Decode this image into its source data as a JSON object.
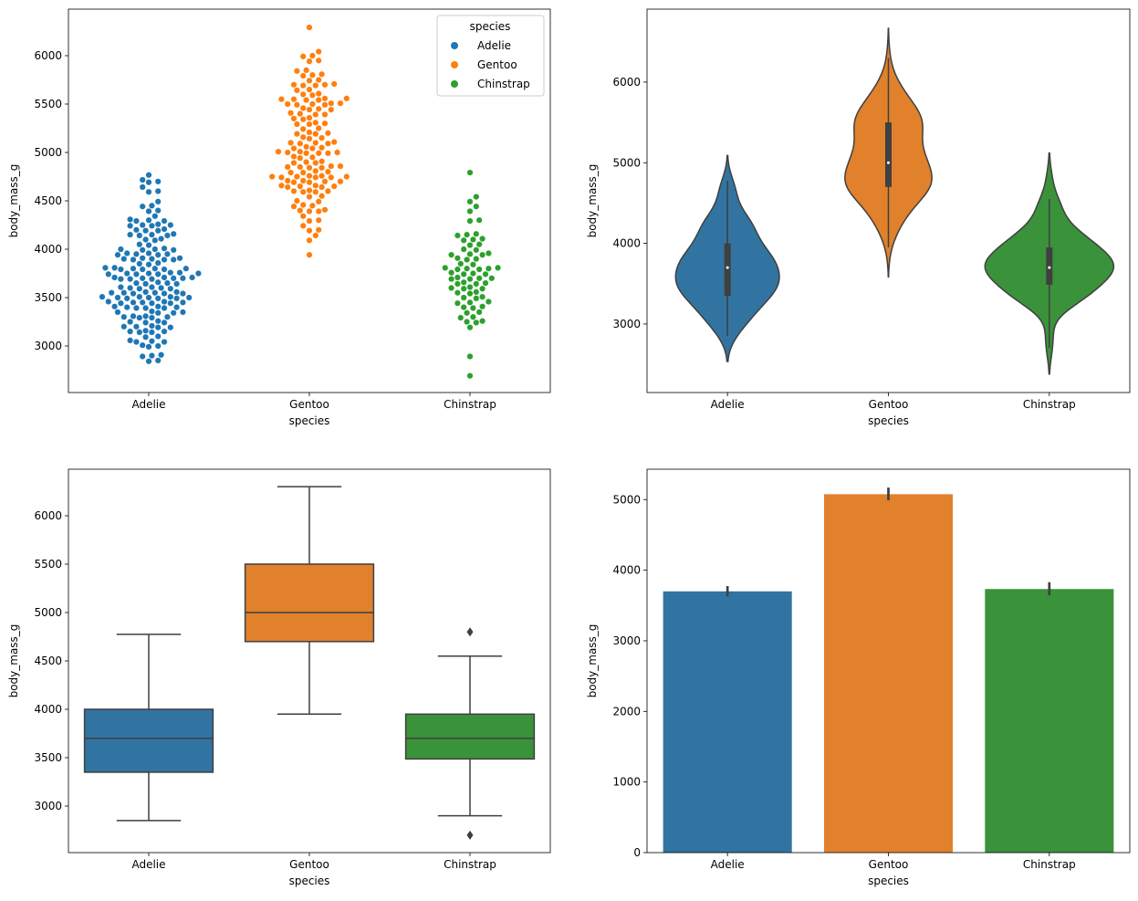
{
  "colors": {
    "swarm": [
      "#1f77b4",
      "#ff7f0e",
      "#2ca02c"
    ],
    "muted": [
      "#3274a1",
      "#e1812c",
      "#3a923a"
    ],
    "line": "#3f3f3f"
  },
  "chart_data": [
    {
      "type": "scatter",
      "kind": "swarm",
      "xlabel": "species",
      "ylabel": "body_mass_g",
      "categories": [
        "Adelie",
        "Gentoo",
        "Chinstrap"
      ],
      "ylim": [
        2519,
        6481
      ],
      "yticks": [
        3000,
        3500,
        4000,
        4500,
        5000,
        5500,
        6000
      ],
      "legend": {
        "title": "species",
        "entries": [
          "Adelie",
          "Gentoo",
          "Chinstrap"
        ],
        "placement": "upper right"
      },
      "value_counts": [
        [
          [
            2850,
            2
          ],
          [
            2900,
            3
          ],
          [
            3000,
            3
          ],
          [
            3050,
            4
          ],
          [
            3100,
            2
          ],
          [
            3150,
            5
          ],
          [
            3200,
            5
          ],
          [
            3250,
            4
          ],
          [
            3300,
            6
          ],
          [
            3350,
            5
          ],
          [
            3400,
            7
          ],
          [
            3450,
            8
          ],
          [
            3500,
            9
          ],
          [
            3550,
            8
          ],
          [
            3600,
            6
          ],
          [
            3650,
            5
          ],
          [
            3700,
            9
          ],
          [
            3750,
            8
          ],
          [
            3800,
            8
          ],
          [
            3850,
            3
          ],
          [
            3900,
            7
          ],
          [
            3950,
            6
          ],
          [
            4000,
            5
          ],
          [
            4050,
            2
          ],
          [
            4100,
            3
          ],
          [
            4150,
            5
          ],
          [
            4200,
            4
          ],
          [
            4250,
            5
          ],
          [
            4300,
            4
          ],
          [
            4350,
            1
          ],
          [
            4400,
            2
          ],
          [
            4450,
            2
          ],
          [
            4500,
            1
          ],
          [
            4600,
            2
          ],
          [
            4650,
            1
          ],
          [
            4700,
            2
          ],
          [
            4725,
            1
          ],
          [
            4775,
            1
          ]
        ],
        [
          [
            3950,
            1
          ],
          [
            4100,
            1
          ],
          [
            4150,
            1
          ],
          [
            4200,
            2
          ],
          [
            4250,
            1
          ],
          [
            4300,
            2
          ],
          [
            4350,
            1
          ],
          [
            4400,
            4
          ],
          [
            4450,
            3
          ],
          [
            4500,
            2
          ],
          [
            4550,
            2
          ],
          [
            4600,
            5
          ],
          [
            4650,
            6
          ],
          [
            4700,
            6
          ],
          [
            4750,
            8
          ],
          [
            4800,
            4
          ],
          [
            4850,
            6
          ],
          [
            4900,
            4
          ],
          [
            4950,
            3
          ],
          [
            5000,
            7
          ],
          [
            5050,
            4
          ],
          [
            5100,
            5
          ],
          [
            5150,
            3
          ],
          [
            5200,
            4
          ],
          [
            5250,
            2
          ],
          [
            5300,
            4
          ],
          [
            5350,
            3
          ],
          [
            5400,
            4
          ],
          [
            5450,
            4
          ],
          [
            5500,
            6
          ],
          [
            5550,
            6
          ],
          [
            5600,
            3
          ],
          [
            5650,
            2
          ],
          [
            5700,
            5
          ],
          [
            5750,
            2
          ],
          [
            5800,
            3
          ],
          [
            5850,
            2
          ],
          [
            5950,
            2
          ],
          [
            6000,
            2
          ],
          [
            6050,
            1
          ],
          [
            6300,
            1
          ]
        ],
        [
          [
            2700,
            1
          ],
          [
            2900,
            1
          ],
          [
            3200,
            1
          ],
          [
            3250,
            3
          ],
          [
            3300,
            2
          ],
          [
            3350,
            2
          ],
          [
            3400,
            3
          ],
          [
            3450,
            3
          ],
          [
            3500,
            3
          ],
          [
            3550,
            3
          ],
          [
            3600,
            4
          ],
          [
            3650,
            4
          ],
          [
            3700,
            5
          ],
          [
            3750,
            4
          ],
          [
            3800,
            6
          ],
          [
            3850,
            2
          ],
          [
            3900,
            3
          ],
          [
            3950,
            4
          ],
          [
            4000,
            2
          ],
          [
            4050,
            2
          ],
          [
            4100,
            3
          ],
          [
            4150,
            3
          ],
          [
            4300,
            2
          ],
          [
            4400,
            1
          ],
          [
            4450,
            1
          ],
          [
            4500,
            1
          ],
          [
            4550,
            1
          ],
          [
            4800,
            1
          ]
        ]
      ]
    },
    {
      "type": "violin",
      "xlabel": "species",
      "ylabel": "body_mass_g",
      "categories": [
        "Adelie",
        "Gentoo",
        "Chinstrap"
      ],
      "ylim": [
        2150,
        6905
      ],
      "yticks": [
        3000,
        4000,
        5000,
        6000
      ],
      "inner_box": [
        {
          "min": 2850,
          "q1": 3350,
          "median": 3700,
          "q3": 4000,
          "max": 4775
        },
        {
          "min": 3950,
          "q1": 4700,
          "median": 5000,
          "q3": 5500,
          "max": 6300
        },
        {
          "min": 2700,
          "q1": 3487,
          "median": 3700,
          "q3": 3950,
          "max": 4550
        }
      ]
    },
    {
      "type": "box",
      "xlabel": "species",
      "ylabel": "body_mass_g",
      "categories": [
        "Adelie",
        "Gentoo",
        "Chinstrap"
      ],
      "ylim": [
        2519,
        6481
      ],
      "yticks": [
        3000,
        3500,
        4000,
        4500,
        5000,
        5500,
        6000
      ],
      "boxes": [
        {
          "whislo": 2850,
          "q1": 3350,
          "median": 3700,
          "q3": 4000,
          "whishi": 4775,
          "fliers": []
        },
        {
          "whislo": 3950,
          "q1": 4700,
          "median": 5000,
          "q3": 5500,
          "whishi": 6300,
          "fliers": []
        },
        {
          "whislo": 2900,
          "q1": 3487,
          "median": 3700,
          "q3": 3950,
          "whishi": 4550,
          "fliers": [
            4800,
            2700
          ]
        }
      ]
    },
    {
      "type": "bar",
      "xlabel": "species",
      "ylabel": "body_mass_g",
      "categories": [
        "Adelie",
        "Gentoo",
        "Chinstrap"
      ],
      "values": [
        3700,
        5076,
        3733
      ],
      "ci": [
        [
          3630,
          3775
        ],
        [
          4990,
          5170
        ],
        [
          3645,
          3830
        ]
      ],
      "ylim": [
        0,
        5430
      ],
      "yticks": [
        0,
        1000,
        2000,
        3000,
        4000,
        5000
      ]
    }
  ]
}
